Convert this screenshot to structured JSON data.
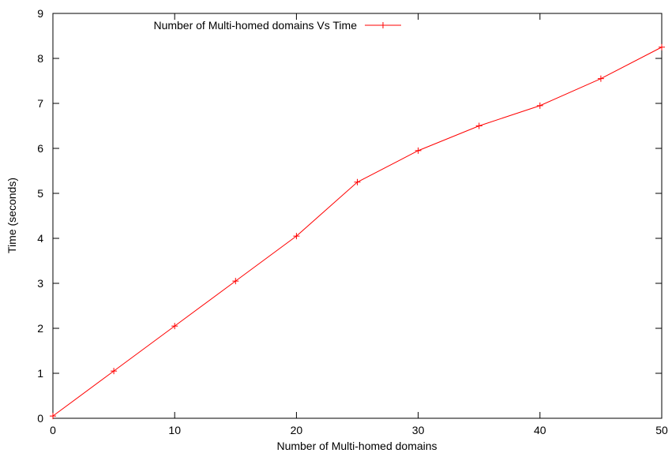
{
  "chart_data": {
    "type": "line",
    "title": "",
    "xlabel": "Number of Multi-homed domains",
    "ylabel": "Time (seconds)",
    "xlim": [
      0,
      50
    ],
    "ylim": [
      0,
      9
    ],
    "x_ticks": [
      0,
      10,
      20,
      30,
      40,
      50
    ],
    "y_ticks": [
      0,
      1,
      2,
      3,
      4,
      5,
      6,
      7,
      8,
      9
    ],
    "grid": false,
    "legend_position": "top",
    "series": [
      {
        "name": "Number of Multi-homed domains Vs Time",
        "color": "#ff0000",
        "marker": "plus",
        "x": [
          0,
          5,
          10,
          15,
          20,
          25,
          30,
          35,
          40,
          45,
          50
        ],
        "y": [
          0.05,
          1.05,
          2.05,
          3.05,
          4.05,
          5.25,
          5.95,
          6.5,
          6.95,
          7.55,
          8.25
        ]
      }
    ]
  }
}
